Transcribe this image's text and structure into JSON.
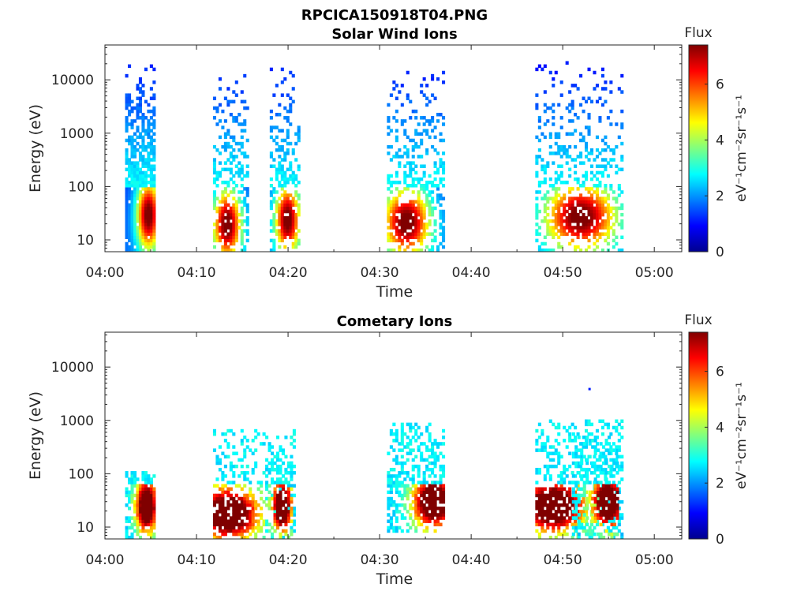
{
  "figure_title": "RPCICA150918T04.PNG",
  "chart_data": [
    {
      "type": "heatmap",
      "title": "Solar Wind Ions",
      "xlabel": "Time",
      "ylabel": "Energy (eV)",
      "x_tick_labels": [
        "04:00",
        "04:10",
        "04:20",
        "04:30",
        "04:40",
        "04:50",
        "05:00"
      ],
      "xlim_minutes": [
        0,
        63
      ],
      "y_scale": "log",
      "ylim": [
        6,
        45000
      ],
      "y_tick_values": [
        10,
        100,
        1000,
        10000
      ],
      "y_tick_labels": [
        "10",
        "100",
        "1000",
        "10000"
      ],
      "colorbar": {
        "title": "Flux",
        "label": "eV⁻¹cm⁻²sr⁻¹s⁻¹",
        "range": [
          0,
          7.4
        ],
        "tick_labels": [
          "0",
          "2",
          "4",
          "6"
        ],
        "tick_values": [
          0,
          2,
          4,
          6
        ],
        "colormap": "jet"
      },
      "bursts": [
        {
          "start_min": 2.2,
          "end_min": 5.2,
          "peak_min": 4.6,
          "emin": 6,
          "emax": 20000,
          "core_energy": 30,
          "density": 0.9
        },
        {
          "start_min": 11.8,
          "end_min": 15.5,
          "peak_min": 13.2,
          "emin": 6,
          "emax": 15000,
          "core_energy": 20,
          "density": 0.45
        },
        {
          "start_min": 18.0,
          "end_min": 21.3,
          "peak_min": 19.8,
          "emin": 6,
          "emax": 20000,
          "core_energy": 25,
          "density": 0.5
        },
        {
          "start_min": 30.8,
          "end_min": 37.0,
          "peak_min": 32.8,
          "emin": 6,
          "emax": 15000,
          "core_energy": 22,
          "density": 0.4
        },
        {
          "start_min": 47.0,
          "end_min": 56.5,
          "peak_min": 51.8,
          "emin": 6,
          "emax": 22000,
          "core_energy": 28,
          "density": 0.35
        }
      ]
    },
    {
      "type": "heatmap",
      "title": "Cometary Ions",
      "xlabel": "Time",
      "ylabel": "Energy (eV)",
      "x_tick_labels": [
        "04:00",
        "04:10",
        "04:20",
        "04:30",
        "04:40",
        "04:50",
        "05:00"
      ],
      "xlim_minutes": [
        0,
        63
      ],
      "y_scale": "log",
      "ylim": [
        6,
        45000
      ],
      "y_tick_values": [
        10,
        100,
        1000,
        10000
      ],
      "y_tick_labels": [
        "10",
        "100",
        "1000",
        "10000"
      ],
      "colorbar": {
        "title": "Flux",
        "label": "eV⁻¹cm⁻²sr⁻¹s⁻¹",
        "range": [
          0,
          7.4
        ],
        "tick_labels": [
          "0",
          "2",
          "4",
          "6"
        ],
        "tick_values": [
          0,
          2,
          4,
          6
        ],
        "colormap": "jet"
      },
      "bursts": [
        {
          "start_min": 2.2,
          "end_min": 5.4,
          "peak_min": 4.4,
          "emin": 6,
          "emax": 120,
          "core_energy": 25,
          "density": 0.6
        },
        {
          "start_min": 11.8,
          "end_min": 20.8,
          "peak_min": 13.3,
          "emin": 6,
          "emax": 700,
          "core_energy": 18,
          "density": 0.3
        },
        {
          "start_min": 17.5,
          "end_min": 20.5,
          "peak_min": 19.2,
          "emin": 6,
          "emax": 250,
          "core_energy": 25,
          "density": 0.4
        },
        {
          "start_min": 30.8,
          "end_min": 37.0,
          "peak_min": 35.8,
          "emin": 8,
          "emax": 950,
          "core_energy": 30,
          "density": 0.45
        },
        {
          "start_min": 47.0,
          "end_min": 56.5,
          "peak_min": 48.8,
          "emin": 6,
          "emax": 1000,
          "core_energy": 25,
          "density": 0.35
        },
        {
          "start_min": 51.0,
          "end_min": 56.0,
          "peak_min": 54.8,
          "emin": 6,
          "emax": 600,
          "core_energy": 30,
          "density": 0.4
        }
      ],
      "isolated_points": [
        {
          "minute": 52.8,
          "energy": 3800
        }
      ]
    }
  ]
}
